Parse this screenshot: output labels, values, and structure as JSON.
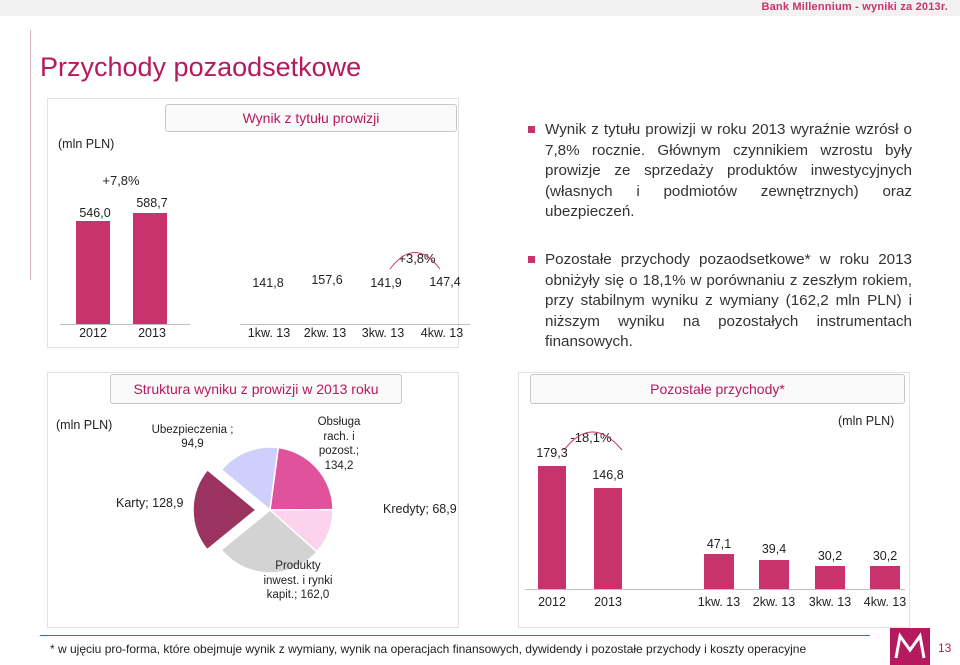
{
  "header": {
    "brand": "Bank Millennium  - wyniki za 2013r."
  },
  "page_title": "Przychody pozaodsetkowe",
  "panels": {
    "prowizje_title": "Wynik z tytułu prowizji",
    "struktura_title": "Struktura wyniku z prowizji w 2013 roku",
    "pozostale_title": "Pozostałe przychody*"
  },
  "unit_label": "(mln PLN)",
  "bullets": [
    "Wynik z tytułu prowizji w roku 2013 wyraźnie wzrósł o 7,8% rocznie. Głównym czynnikiem wzrostu były prowizje ze sprzedaży produktów inwestycyjnych (własnych i podmiotów zewnętrznych) oraz ubezpieczeń.",
    "Pozostałe przychody pozaodsetkowe* w roku 2013 obniżyły się o 18,1% w porównaniu z zeszłym rokiem, przy stabilnym wyniku z wymiany (162,2 mln PLN) i niższym wyniku na pozostałych instrumentach finansowych."
  ],
  "footnote": "* w ujęciu pro-forma, które obejmuje wynik z wymiany, wynik na operacjach finansowych, dywidendy i pozostałe przychody i koszty operacyjne",
  "page_number": "13",
  "colors": {
    "accent": "#c8336e",
    "title": "#b5195e"
  },
  "chart_data": [
    {
      "type": "bar",
      "title": "Wynik z tytułu prowizji",
      "unit": "(mln PLN)",
      "categories": [
        "2012",
        "2013",
        "1kw. 13",
        "2kw. 13",
        "3kw. 13",
        "4kw. 13"
      ],
      "values": [
        546.0,
        588.7,
        141.8,
        157.6,
        141.9,
        147.4
      ],
      "value_labels": [
        "546,0",
        "588,7",
        "141,8",
        "157,6",
        "141,9",
        "147,4"
      ],
      "annotations": [
        "+7,8%",
        "+3,8%"
      ]
    },
    {
      "type": "pie",
      "title": "Struktura wyniku z prowizji w 2013 roku",
      "unit": "(mln PLN)",
      "slices": [
        {
          "label": "Ubezpieczenia ; 94,9",
          "value": 94.9,
          "color": "#cfcffb"
        },
        {
          "label": "Obsługa rach. i pozost.; 134,2",
          "value": 134.2,
          "color": "#e0529c"
        },
        {
          "label": "Kredyty; 68,9",
          "value": 68.9,
          "color": "#fbd3ec"
        },
        {
          "label": "Produkty inwest. i rynki kapit.; 162,0",
          "value": 162.0,
          "color": "#d3d3d3"
        },
        {
          "label": "Karty; 128,9",
          "value": 128.9,
          "color": "#9b3360"
        }
      ]
    },
    {
      "type": "bar",
      "title": "Pozostałe przychody*",
      "unit": "(mln PLN)",
      "categories": [
        "2012",
        "2013",
        "1kw. 13",
        "2kw. 13",
        "3kw. 13",
        "4kw. 13"
      ],
      "values": [
        179.3,
        146.8,
        47.1,
        39.4,
        30.2,
        30.2
      ],
      "value_labels": [
        "179,3",
        "146,8",
        "47,1",
        "39,4",
        "30,2",
        "30,2"
      ],
      "annotations": [
        "-18,1%"
      ]
    }
  ]
}
